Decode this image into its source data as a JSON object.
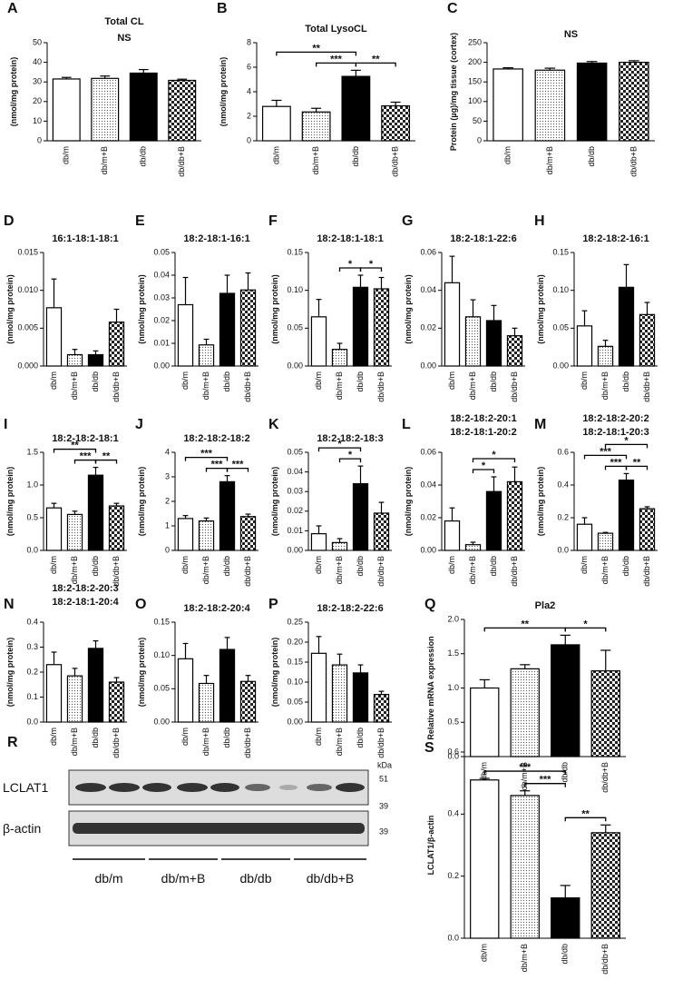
{
  "chart_data": [
    {
      "type": "bar",
      "panel": "A",
      "title": "Total CL",
      "subtitle": "NS",
      "ylabel": "(nmol/mg protein)",
      "categories": [
        "db/m",
        "db/m+B",
        "db/db",
        "db/db+B"
      ],
      "values": [
        31.5,
        31.8,
        34.5,
        30.8
      ],
      "errors": [
        0.8,
        1.2,
        1.8,
        0.6
      ],
      "fills": [
        "white",
        "dotted",
        "black",
        "checkered"
      ],
      "ylim": [
        0,
        50
      ],
      "yticks": [
        0,
        10,
        20,
        30,
        40,
        50
      ],
      "annotations": []
    },
    {
      "type": "bar",
      "panel": "B",
      "title": "Total LysoCL",
      "ylabel": "(nmol/mg protein)",
      "categories": [
        "db/m",
        "db/m+B",
        "db/db",
        "db/db+B"
      ],
      "values": [
        2.8,
        2.35,
        5.25,
        2.85
      ],
      "errors": [
        0.5,
        0.3,
        0.5,
        0.3
      ],
      "fills": [
        "white",
        "dotted",
        "black",
        "checkered"
      ],
      "ylim": [
        0,
        8
      ],
      "yticks": [
        0,
        2,
        4,
        6,
        8
      ],
      "annotations": [
        {
          "text": "***",
          "from": 1,
          "to": 2
        },
        {
          "text": "**",
          "from": 2,
          "to": 3
        },
        {
          "text": "**",
          "from": 0,
          "to": 2
        }
      ]
    },
    {
      "type": "bar",
      "panel": "C",
      "subtitle": "NS",
      "ylabel": "Protein (µg)/mg tissue (cortex)",
      "categories": [
        "db/m",
        "db/m+B",
        "db/db",
        "db/db+B"
      ],
      "values": [
        183,
        180,
        198,
        200
      ],
      "errors": [
        3,
        5,
        4,
        4
      ],
      "fills": [
        "white",
        "dotted",
        "black",
        "checkered"
      ],
      "ylim": [
        0,
        250
      ],
      "yticks": [
        0,
        50,
        100,
        150,
        200,
        250
      ],
      "annotations": []
    },
    {
      "type": "bar",
      "panel": "D",
      "title": "16:1-18:1-18:1",
      "ylabel": "(nmol/mg protein)",
      "categories": [
        "db/m",
        "db/m+B",
        "db/db",
        "db/db+B"
      ],
      "values": [
        0.0077,
        0.0015,
        0.0015,
        0.0058
      ],
      "errors": [
        0.0038,
        0.0007,
        0.0005,
        0.0017
      ],
      "fills": [
        "white",
        "dotted",
        "black",
        "checkered"
      ],
      "ylim": [
        0,
        0.015
      ],
      "yticks": [
        {
          "value": 0,
          "label": "0.000"
        },
        0.005,
        {
          "value": 0.01,
          "label": "0.010"
        },
        0.015
      ],
      "annotations": []
    },
    {
      "type": "bar",
      "panel": "E",
      "title": "18:2-18:1-16:1",
      "ylabel": "(nmol/mg protein)",
      "categories": [
        "db/m",
        "db/m+B",
        "db/db",
        "db/db+B"
      ],
      "values": [
        0.027,
        0.0093,
        0.032,
        0.0335
      ],
      "errors": [
        0.012,
        0.0025,
        0.008,
        0.0075
      ],
      "fills": [
        "white",
        "dotted",
        "black",
        "checkered"
      ],
      "ylim": [
        0,
        0.05
      ],
      "yticks": [
        {
          "value": 0,
          "label": "0.00"
        },
        0.01,
        0.02,
        0.03,
        0.04,
        0.05
      ],
      "annotations": []
    },
    {
      "type": "bar",
      "panel": "F",
      "title": "18:2-18:1-18:1",
      "ylabel": "(nmol/mg protein)",
      "categories": [
        "db/m",
        "db/m+B",
        "db/db",
        "db/db+B"
      ],
      "values": [
        0.065,
        0.022,
        0.104,
        0.102
      ],
      "errors": [
        0.023,
        0.008,
        0.016,
        0.015
      ],
      "fills": [
        "white",
        "dotted",
        "black",
        "checkered"
      ],
      "ylim": [
        0,
        0.15
      ],
      "yticks": [
        {
          "value": 0,
          "label": "0.00"
        },
        0.05,
        {
          "value": 0.1,
          "label": "0.10"
        },
        0.15
      ],
      "annotations": [
        {
          "text": "*",
          "from": 1,
          "to": 2
        },
        {
          "text": "*",
          "from": 2,
          "to": 3
        }
      ]
    },
    {
      "type": "bar",
      "panel": "G",
      "title": "18:2-18:1-22:6",
      "ylabel": "(nmol/mg protein)",
      "categories": [
        "db/m",
        "db/m+B",
        "db/db",
        "db/db+B"
      ],
      "values": [
        0.044,
        0.026,
        0.024,
        0.016
      ],
      "errors": [
        0.014,
        0.009,
        0.008,
        0.004
      ],
      "fills": [
        "white",
        "dotted",
        "black",
        "checkered"
      ],
      "ylim": [
        0,
        0.06
      ],
      "yticks": [
        {
          "value": 0,
          "label": "0.00"
        },
        0.02,
        0.04,
        0.06
      ],
      "annotations": []
    },
    {
      "type": "bar",
      "panel": "H",
      "title": "18:2-18:2-16:1",
      "ylabel": "(nmol/mg protein)",
      "categories": [
        "db/m",
        "db/m+B",
        "db/db",
        "db/db+B"
      ],
      "values": [
        0.053,
        0.026,
        0.104,
        0.068
      ],
      "errors": [
        0.02,
        0.008,
        0.03,
        0.016
      ],
      "fills": [
        "white",
        "dotted",
        "black",
        "checkered"
      ],
      "ylim": [
        0,
        0.15
      ],
      "yticks": [
        {
          "value": 0,
          "label": "0.00"
        },
        0.05,
        {
          "value": 0.1,
          "label": "0.10"
        },
        0.15
      ],
      "annotations": []
    },
    {
      "type": "bar",
      "panel": "I",
      "title": "18:2-18:2-18:1",
      "ylabel": "(nmol/mg protein)",
      "categories": [
        "db/m",
        "db/m+B",
        "db/db",
        "db/db+B"
      ],
      "values": [
        0.65,
        0.55,
        1.15,
        0.68
      ],
      "errors": [
        0.07,
        0.05,
        0.12,
        0.04
      ],
      "fills": [
        "white",
        "dotted",
        "black",
        "checkered"
      ],
      "ylim": [
        0,
        1.5
      ],
      "yticks": [
        {
          "value": 0,
          "label": "0.0"
        },
        0.5,
        {
          "value": 1,
          "label": "1.0"
        },
        1.5
      ],
      "annotations": [
        {
          "text": "***",
          "from": 1,
          "to": 2
        },
        {
          "text": "**",
          "from": 2,
          "to": 3
        },
        {
          "text": "**",
          "from": 0,
          "to": 2
        }
      ]
    },
    {
      "type": "bar",
      "panel": "J",
      "title": "18:2-18:2-18:2",
      "ylabel": "(nmol/mg protein)",
      "categories": [
        "db/m",
        "db/m+B",
        "db/db",
        "db/db+B"
      ],
      "values": [
        1.3,
        1.2,
        2.8,
        1.38
      ],
      "errors": [
        0.12,
        0.12,
        0.25,
        0.1
      ],
      "fills": [
        "white",
        "dotted",
        "black",
        "checkered"
      ],
      "ylim": [
        0,
        4
      ],
      "yticks": [
        0,
        1,
        2,
        3,
        4
      ],
      "annotations": [
        {
          "text": "***",
          "from": 1,
          "to": 2
        },
        {
          "text": "***",
          "from": 2,
          "to": 3
        },
        {
          "text": "***",
          "from": 0,
          "to": 2
        }
      ]
    },
    {
      "type": "bar",
      "panel": "K",
      "title": "18:2-18:2-18:3",
      "ylabel": "(nmol/mg protein)",
      "categories": [
        "db/m",
        "db/m+B",
        "db/db",
        "db/db+B"
      ],
      "values": [
        0.0085,
        0.004,
        0.034,
        0.019
      ],
      "errors": [
        0.004,
        0.002,
        0.009,
        0.0055
      ],
      "fills": [
        "white",
        "dotted",
        "black",
        "checkered"
      ],
      "ylim": [
        0,
        0.05
      ],
      "yticks": [
        {
          "value": 0,
          "label": "0.00"
        },
        0.01,
        0.02,
        0.03,
        0.04,
        0.05
      ],
      "annotations": [
        {
          "text": "*",
          "from": 1,
          "to": 2
        },
        {
          "text": "*",
          "from": 0,
          "to": 2
        }
      ]
    },
    {
      "type": "bar",
      "panel": "L",
      "title": [
        "18:2-18:2-20:1",
        "18:2-18:1-20:2"
      ],
      "ylabel": "(nmol/mg protein)",
      "categories": [
        "db/m",
        "db/m+B",
        "db/db",
        "db/db+B"
      ],
      "values": [
        0.018,
        0.0035,
        0.036,
        0.042
      ],
      "errors": [
        0.008,
        0.0015,
        0.009,
        0.009
      ],
      "fills": [
        "white",
        "dotted",
        "black",
        "checkered"
      ],
      "ylim": [
        0,
        0.06
      ],
      "yticks": [
        {
          "value": 0,
          "label": "0.00"
        },
        0.02,
        0.04,
        0.06
      ],
      "annotations": [
        {
          "text": "*",
          "from": 1,
          "to": 2
        },
        {
          "text": "*",
          "from": 1,
          "to": 3
        }
      ]
    },
    {
      "type": "bar",
      "panel": "M",
      "title": [
        "18:2-18:2-20:2",
        "18:2-18:1-20:3"
      ],
      "ylabel": "(nmol/mg protein)",
      "categories": [
        "db/m",
        "db/m+B",
        "db/db",
        "db/db+B"
      ],
      "values": [
        0.16,
        0.105,
        0.43,
        0.255
      ],
      "errors": [
        0.04,
        0.005,
        0.04,
        0.012
      ],
      "fills": [
        "white",
        "dotted",
        "black",
        "checkered"
      ],
      "ylim": [
        0,
        0.6
      ],
      "yticks": [
        {
          "value": 0,
          "label": "0.0"
        },
        0.2,
        0.4,
        0.6
      ],
      "annotations": [
        {
          "text": "***",
          "from": 1,
          "to": 2
        },
        {
          "text": "**",
          "from": 2,
          "to": 3
        },
        {
          "text": "***",
          "from": 0,
          "to": 2
        },
        {
          "text": "*",
          "from": 1,
          "to": 3
        }
      ]
    },
    {
      "type": "bar",
      "panel": "N",
      "title": [
        "18:2-18:2-20:3",
        "18:2-18:1-20:4"
      ],
      "ylabel": "(nmol/mg protein)",
      "categories": [
        "db/m",
        "db/m+B",
        "db/db",
        "db/db+B"
      ],
      "values": [
        0.23,
        0.185,
        0.295,
        0.16
      ],
      "errors": [
        0.05,
        0.03,
        0.03,
        0.018
      ],
      "fills": [
        "white",
        "dotted",
        "black",
        "checkered"
      ],
      "ylim": [
        0,
        0.4
      ],
      "yticks": [
        {
          "value": 0,
          "label": "0.0"
        },
        0.1,
        0.2,
        0.3,
        0.4
      ],
      "annotations": []
    },
    {
      "type": "bar",
      "panel": "O",
      "title": "18:2-18:2-20:4",
      "ylabel": "(nmol/mg protein)",
      "categories": [
        "db/m",
        "db/m+B",
        "db/db",
        "db/db+B"
      ],
      "values": [
        0.095,
        0.058,
        0.109,
        0.061
      ],
      "errors": [
        0.023,
        0.012,
        0.018,
        0.009
      ],
      "fills": [
        "white",
        "dotted",
        "black",
        "checkered"
      ],
      "ylim": [
        0,
        0.15
      ],
      "yticks": [
        {
          "value": 0,
          "label": "0.00"
        },
        0.05,
        {
          "value": 0.1,
          "label": "0.10"
        },
        0.15
      ],
      "annotations": []
    },
    {
      "type": "bar",
      "panel": "P",
      "title": "18:2-18:2-22:6",
      "ylabel": "(nmol/mg protein)",
      "categories": [
        "db/m",
        "db/m+B",
        "db/db",
        "db/db+B"
      ],
      "values": [
        0.172,
        0.143,
        0.123,
        0.069
      ],
      "errors": [
        0.042,
        0.027,
        0.02,
        0.008
      ],
      "fills": [
        "white",
        "dotted",
        "black",
        "checkered"
      ],
      "ylim": [
        0,
        0.25
      ],
      "yticks": [
        {
          "value": 0,
          "label": "0.00"
        },
        0.05,
        {
          "value": 0.1,
          "label": "0.10"
        },
        0.15,
        {
          "value": 0.2,
          "label": "0.20"
        },
        0.25
      ],
      "annotations": []
    },
    {
      "type": "bar",
      "panel": "Q",
      "title": "Pla2",
      "ylabel": "Relative mRNA expression",
      "categories": [
        "db/m",
        "db/m+B",
        "db/db",
        "db/db+B"
      ],
      "values": [
        1.0,
        1.28,
        1.63,
        1.25
      ],
      "errors": [
        0.12,
        0.06,
        0.14,
        0.3
      ],
      "fills": [
        "white",
        "dotted",
        "black",
        "checkered"
      ],
      "ylim": [
        0,
        2
      ],
      "yticks": [
        {
          "value": 0,
          "label": "0.0"
        },
        0.5,
        {
          "value": 1,
          "label": "1.0"
        },
        1.5,
        {
          "value": 2,
          "label": "2.0"
        }
      ],
      "annotations": [
        {
          "text": "*",
          "from": 2,
          "to": 3
        },
        {
          "text": "**",
          "from": 0,
          "to": 2
        }
      ]
    },
    {
      "type": "bar",
      "panel": "S",
      "ylabel": "LCLAT1/β-actin",
      "categories": [
        "db/m",
        "db/m+B",
        "db/db",
        "db/db+B"
      ],
      "values": [
        0.51,
        0.46,
        0.13,
        0.34
      ],
      "errors": [
        0.005,
        0.015,
        0.04,
        0.025
      ],
      "fills": [
        "white",
        "dotted",
        "black",
        "checkered"
      ],
      "ylim": [
        0,
        0.6
      ],
      "yticks": [
        {
          "value": 0,
          "label": "0.0"
        },
        0.2,
        0.4,
        0.6
      ],
      "annotations": [
        {
          "text": "***",
          "from": 1,
          "to": 2
        },
        {
          "text": "**",
          "from": 2,
          "to": 3
        },
        {
          "text": "***",
          "from": 0,
          "to": 2
        }
      ]
    }
  ],
  "blot": {
    "panel": "R",
    "rows": [
      "LCLAT1",
      "β-actin"
    ],
    "kda": "kDa",
    "markers": [
      "51",
      "39",
      "39"
    ],
    "groups": [
      "db/m",
      "db/m+B",
      "db/db",
      "db/db+B"
    ]
  }
}
